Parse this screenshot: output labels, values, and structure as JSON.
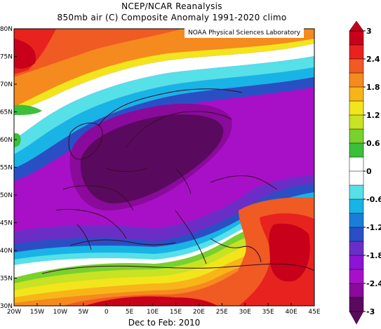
{
  "title_line1": "NCEP/NCAR Reanalysis",
  "title_line2": "850mb air (C) Composite Anomaly 1991-2020 climo",
  "credit": "NOAA Physical Sciences Laboratory",
  "footer": "Dec to Feb: 2010",
  "lat_labels": [
    "80N",
    "75N",
    "70N",
    "65N",
    "60N",
    "55N",
    "50N",
    "45N",
    "40N",
    "35N",
    "30N"
  ],
  "lon_labels": [
    "20W",
    "15W",
    "10W",
    "5W",
    "0",
    "5E",
    "10E",
    "15E",
    "20E",
    "25E",
    "30E",
    "35E",
    "40E",
    "45E"
  ],
  "colorbar": {
    "labels": [
      "3",
      "2.4",
      "1.8",
      "1.2",
      "0.6",
      "0",
      "-0.6",
      "-1.2",
      "-1.8",
      "-2.4",
      "-3"
    ],
    "colors": [
      "#c8001a",
      "#e8221f",
      "#f05a23",
      "#f58a1f",
      "#f7b519",
      "#f2e51c",
      "#c8e224",
      "#78d12c",
      "#3cbf3a",
      "#ffffff",
      "#ffffff",
      "#56e0e8",
      "#18b4e6",
      "#1a7ed8",
      "#2a4fc4",
      "#6a2ec6",
      "#8c14d4",
      "#a810c8",
      "#8a0a9c",
      "#5a0a5e"
    ]
  },
  "map": {
    "region": "Europe",
    "lon_range": [
      -20,
      45
    ],
    "lat_range": [
      30,
      80
    ],
    "variable": "850mb air temperature anomaly",
    "units": "C",
    "contour_interval": 0.3
  }
}
